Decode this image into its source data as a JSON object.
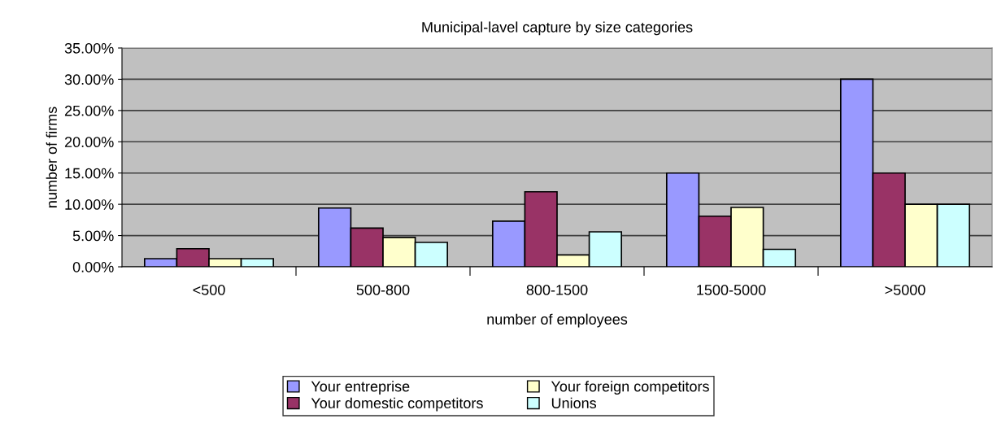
{
  "chart_data": {
    "type": "bar",
    "title": "Municipal-lavel capture by size categories",
    "xlabel": "number of employees",
    "ylabel": "number of firms",
    "categories": [
      "<500",
      "500-800",
      "800-1500",
      "1500-5000",
      ">5000"
    ],
    "series": [
      {
        "name": "Your entreprise",
        "color": "#9999ff",
        "values": [
          1.3,
          9.4,
          7.3,
          15.0,
          30.0
        ]
      },
      {
        "name": "Your domestic competitors",
        "color": "#993366",
        "values": [
          2.9,
          6.2,
          12.0,
          8.1,
          15.0
        ]
      },
      {
        "name": "Your foreign competitors",
        "color": "#ffffcc",
        "values": [
          1.3,
          4.7,
          1.9,
          9.5,
          10.0
        ]
      },
      {
        "name": "Unions",
        "color": "#ccffff",
        "values": [
          1.3,
          3.9,
          5.6,
          2.8,
          10.0
        ]
      }
    ],
    "ylim": [
      0,
      35
    ],
    "yticks": [
      {
        "value": 0,
        "label": "0.00%"
      },
      {
        "value": 5,
        "label": "5.00%"
      },
      {
        "value": 10,
        "label": "10.00%"
      },
      {
        "value": 15,
        "label": "15.00%"
      },
      {
        "value": 20,
        "label": "20.00%"
      },
      {
        "value": 25,
        "label": "25.00%"
      },
      {
        "value": 30,
        "label": "30.00%"
      },
      {
        "value": 35,
        "label": "35.00%"
      }
    ],
    "grid": "y",
    "legend": "bottom"
  }
}
